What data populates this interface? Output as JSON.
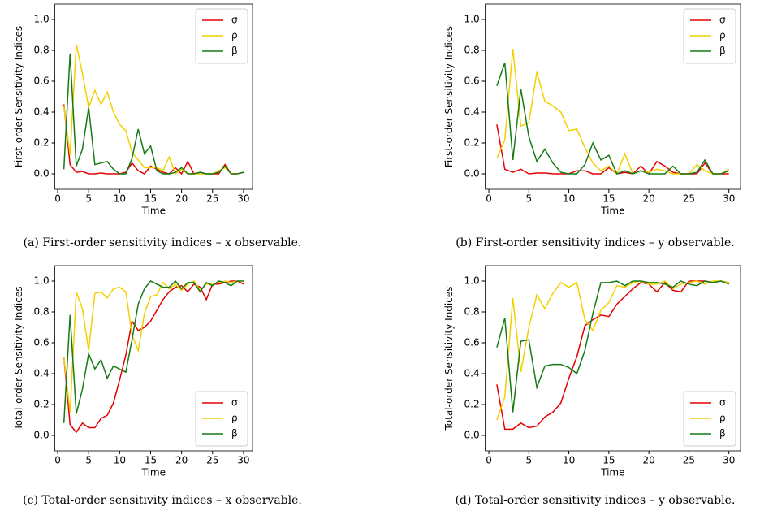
{
  "chart_data": [
    {
      "type": "line",
      "caption": "(a) First-order sensitivity indices – x observable.",
      "xlabel": "Time",
      "ylabel": "First-order Sensitivity Indices",
      "legend": "upper right",
      "x": [
        1,
        2,
        3,
        4,
        5,
        6,
        7,
        8,
        9,
        10,
        11,
        12,
        13,
        14,
        15,
        16,
        17,
        18,
        19,
        20,
        21,
        22,
        23,
        24,
        25,
        26,
        27,
        28,
        29,
        30
      ],
      "xlim": [
        -0.45,
        31.45
      ],
      "xticks": [
        0,
        5,
        10,
        15,
        20,
        25,
        30
      ],
      "ylim": [
        -0.1,
        1.1
      ],
      "yticks": [
        {
          "value": 0,
          "label": "0.0"
        },
        0.2,
        0.4,
        0.6,
        0.8,
        {
          "value": 1,
          "label": "1.0"
        }
      ],
      "series": [
        {
          "name": "σ",
          "color": "#e40000",
          "values": [
            0.45,
            0.06,
            0.01,
            0.015,
            0,
            0,
            0.005,
            0,
            0,
            0,
            0.01,
            0.07,
            0.02,
            0,
            0.05,
            0.03,
            0.01,
            0,
            0.04,
            0,
            0.08,
            0,
            0.01,
            0,
            0,
            0,
            0.06,
            0,
            0,
            0.01
          ]
        },
        {
          "name": "ρ",
          "color": "#f2d000",
          "values": [
            0.44,
            0.12,
            0.84,
            0.65,
            0.43,
            0.54,
            0.45,
            0.53,
            0.4,
            0.32,
            0.28,
            0.14,
            0.09,
            0.04,
            0.04,
            0.04,
            0.02,
            0.11,
            0,
            0.03,
            0,
            0,
            0,
            0,
            0,
            0.02,
            0.04,
            0,
            0,
            0.01
          ]
        },
        {
          "name": "β",
          "color": "#157a15",
          "values": [
            0.03,
            0.78,
            0.05,
            0.16,
            0.43,
            0.06,
            0.07,
            0.08,
            0.03,
            0,
            0,
            0.1,
            0.29,
            0.13,
            0.18,
            0.02,
            0,
            0,
            0.01,
            0.04,
            0,
            0,
            0.01,
            0,
            0,
            0.01,
            0.05,
            0,
            0,
            0.01
          ]
        }
      ]
    },
    {
      "type": "line",
      "caption": "(b) First-order sensitivity indices – y observable.",
      "xlabel": "Time",
      "ylabel": "First-order Sensitivity Indices",
      "legend": "upper right",
      "x": [
        1,
        2,
        3,
        4,
        5,
        6,
        7,
        8,
        9,
        10,
        11,
        12,
        13,
        14,
        15,
        16,
        17,
        18,
        19,
        20,
        21,
        22,
        23,
        24,
        25,
        26,
        27,
        28,
        29,
        30
      ],
      "xlim": [
        -0.45,
        31.45
      ],
      "xticks": [
        0,
        5,
        10,
        15,
        20,
        25,
        30
      ],
      "ylim": [
        -0.1,
        1.1
      ],
      "yticks": [
        {
          "value": 0,
          "label": "0.0"
        },
        0.2,
        0.4,
        0.6,
        0.8,
        {
          "value": 1,
          "label": "1.0"
        }
      ],
      "series": [
        {
          "name": "σ",
          "color": "#e40000",
          "values": [
            0.32,
            0.03,
            0.01,
            0.03,
            0,
            0.005,
            0.005,
            0,
            0,
            0,
            0.02,
            0.02,
            0,
            0,
            0.04,
            0,
            0.01,
            0,
            0.05,
            0,
            0.08,
            0.05,
            0.01,
            0,
            0,
            0,
            0.07,
            0,
            0,
            0
          ]
        },
        {
          "name": "ρ",
          "color": "#f2d000",
          "values": [
            0.1,
            0.22,
            0.81,
            0.31,
            0.33,
            0.66,
            0.47,
            0.44,
            0.4,
            0.28,
            0.29,
            0.17,
            0.07,
            0.02,
            0.05,
            0,
            0.13,
            0,
            0.02,
            0.01,
            0.03,
            0.02,
            0,
            0,
            0,
            0.06,
            0.02,
            0,
            0,
            0.03
          ]
        },
        {
          "name": "β",
          "color": "#157a15",
          "values": [
            0.57,
            0.72,
            0.09,
            0.55,
            0.24,
            0.08,
            0.16,
            0.07,
            0.01,
            0,
            0,
            0.06,
            0.2,
            0.09,
            0.12,
            0,
            0.02,
            0,
            0.02,
            0,
            0,
            0,
            0.05,
            0,
            0,
            0.01,
            0.09,
            0,
            0,
            0.02
          ]
        }
      ]
    },
    {
      "type": "line",
      "caption": "(c) Total-order sensitivity indices – x observable.",
      "xlabel": "Time",
      "ylabel": "Total-order Sensitivity Indices",
      "legend": "lower right",
      "x": [
        1,
        2,
        3,
        4,
        5,
        6,
        7,
        8,
        9,
        10,
        11,
        12,
        13,
        14,
        15,
        16,
        17,
        18,
        19,
        20,
        21,
        22,
        23,
        24,
        25,
        26,
        27,
        28,
        29,
        30
      ],
      "xlim": [
        -0.45,
        31.45
      ],
      "xticks": [
        0,
        5,
        10,
        15,
        20,
        25,
        30
      ],
      "ylim": [
        -0.1,
        1.1
      ],
      "yticks": [
        {
          "value": 0,
          "label": "0.0"
        },
        0.2,
        0.4,
        0.6,
        0.8,
        {
          "value": 1,
          "label": "1.0"
        }
      ],
      "series": [
        {
          "name": "σ",
          "color": "#e40000",
          "values": [
            0.51,
            0.07,
            0.02,
            0.08,
            0.05,
            0.05,
            0.11,
            0.13,
            0.21,
            0.36,
            0.52,
            0.74,
            0.68,
            0.7,
            0.74,
            0.81,
            0.88,
            0.93,
            0.96,
            0.97,
            0.93,
            0.98,
            0.96,
            0.88,
            0.98,
            0.98,
            0.99,
            1,
            1,
            0.98
          ]
        },
        {
          "name": "ρ",
          "color": "#f2d000",
          "values": [
            0.51,
            0.15,
            0.93,
            0.82,
            0.55,
            0.92,
            0.93,
            0.89,
            0.95,
            0.96,
            0.93,
            0.65,
            0.55,
            0.79,
            0.9,
            0.91,
            0.99,
            0.95,
            0.98,
            0.94,
            0.98,
            1,
            0.94,
            0.98,
            0.98,
            0.99,
            1,
            0.99,
            1,
            1
          ]
        },
        {
          "name": "β",
          "color": "#157a15",
          "values": [
            0.08,
            0.78,
            0.14,
            0.3,
            0.53,
            0.43,
            0.49,
            0.37,
            0.45,
            0.43,
            0.41,
            0.62,
            0.85,
            0.95,
            1,
            0.98,
            0.96,
            0.96,
            1,
            0.95,
            0.99,
            0.99,
            0.93,
            0.99,
            0.97,
            1,
            0.99,
            0.97,
            1,
            1
          ]
        }
      ]
    },
    {
      "type": "line",
      "caption": "(d) Total-order sensitivity indices – y observable.",
      "xlabel": "Time",
      "ylabel": "Total-order Sensitivity Indices",
      "legend": "lower right",
      "x": [
        1,
        2,
        3,
        4,
        5,
        6,
        7,
        8,
        9,
        10,
        11,
        12,
        13,
        14,
        15,
        16,
        17,
        18,
        19,
        20,
        21,
        22,
        23,
        24,
        25,
        26,
        27,
        28,
        29,
        30
      ],
      "xlim": [
        -0.45,
        31.45
      ],
      "xticks": [
        0,
        5,
        10,
        15,
        20,
        25,
        30
      ],
      "ylim": [
        -0.1,
        1.1
      ],
      "yticks": [
        {
          "value": 0,
          "label": "0.0"
        },
        0.2,
        0.4,
        0.6,
        0.8,
        {
          "value": 1,
          "label": "1.0"
        }
      ],
      "series": [
        {
          "name": "σ",
          "color": "#e40000",
          "values": [
            0.33,
            0.04,
            0.04,
            0.08,
            0.05,
            0.06,
            0.12,
            0.15,
            0.21,
            0.37,
            0.51,
            0.71,
            0.75,
            0.78,
            0.77,
            0.85,
            0.9,
            0.95,
            0.99,
            0.98,
            0.93,
            0.99,
            0.94,
            0.93,
            1,
            1,
            1,
            0.99,
            1,
            0.99
          ]
        },
        {
          "name": "ρ",
          "color": "#f2d000",
          "values": [
            0.1,
            0.25,
            0.89,
            0.41,
            0.7,
            0.91,
            0.82,
            0.92,
            0.99,
            0.96,
            0.99,
            0.75,
            0.68,
            0.81,
            0.86,
            0.97,
            0.96,
            0.99,
            1,
            0.98,
            0.98,
            1,
            0.95,
            0.98,
            0.99,
            1,
            0.98,
            1,
            1,
            0.99
          ]
        },
        {
          "name": "β",
          "color": "#157a15",
          "values": [
            0.57,
            0.76,
            0.15,
            0.61,
            0.62,
            0.31,
            0.45,
            0.46,
            0.46,
            0.44,
            0.4,
            0.55,
            0.79,
            0.99,
            0.99,
            1,
            0.97,
            1,
            1,
            0.99,
            0.99,
            0.98,
            0.96,
            1,
            0.98,
            0.97,
            1,
            0.99,
            1,
            0.98
          ]
        }
      ]
    }
  ]
}
